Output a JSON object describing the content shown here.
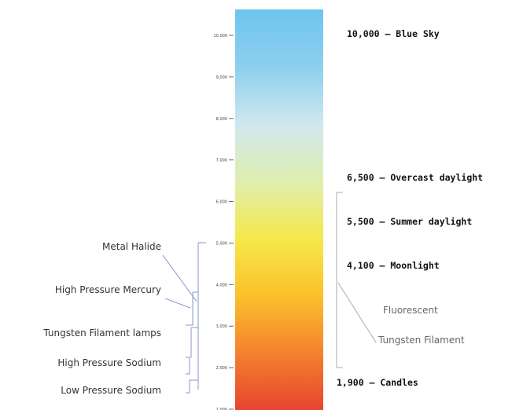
{
  "scale": {
    "min": 1000,
    "max": 10000,
    "ticks": [
      "10,000",
      "9,000",
      "8,000",
      "7,000",
      "6,000",
      "5,000",
      "4,000",
      "3,000",
      "2,000",
      "1,000"
    ],
    "gradient_colors": [
      "#e8442e",
      "#f4812e",
      "#fbc12c",
      "#f6e84a",
      "#dfeeb0",
      "#cfe7ef",
      "#8ccfee",
      "#6ec5ee"
    ]
  },
  "light_sources": [
    {
      "label": "Metal Halide",
      "kelvin": 5000
    },
    {
      "label": "High Pressure Mercury",
      "kelvin": 3600
    },
    {
      "label": "Tungsten Filament lamps",
      "kelvin": 3000
    },
    {
      "label": "High Pressure Sodium",
      "kelvin": 2100
    },
    {
      "label": "Low Pressure Sodium",
      "kelvin": 1200
    }
  ],
  "reference_points": [
    {
      "label": "10,000 – Blue Sky",
      "kelvin": 10000
    },
    {
      "label": "6,500 – Overcast daylight",
      "kelvin": 6500
    },
    {
      "label": "5,500 – Summer daylight",
      "kelvin": 5500
    },
    {
      "label": "4,100 – Moonlight",
      "kelvin": 4100
    },
    {
      "label": "1,900 – Candles",
      "kelvin": 1900
    }
  ],
  "range_labels": [
    {
      "label": "Fluorescent"
    },
    {
      "label": "Tungsten Filament"
    }
  ]
}
